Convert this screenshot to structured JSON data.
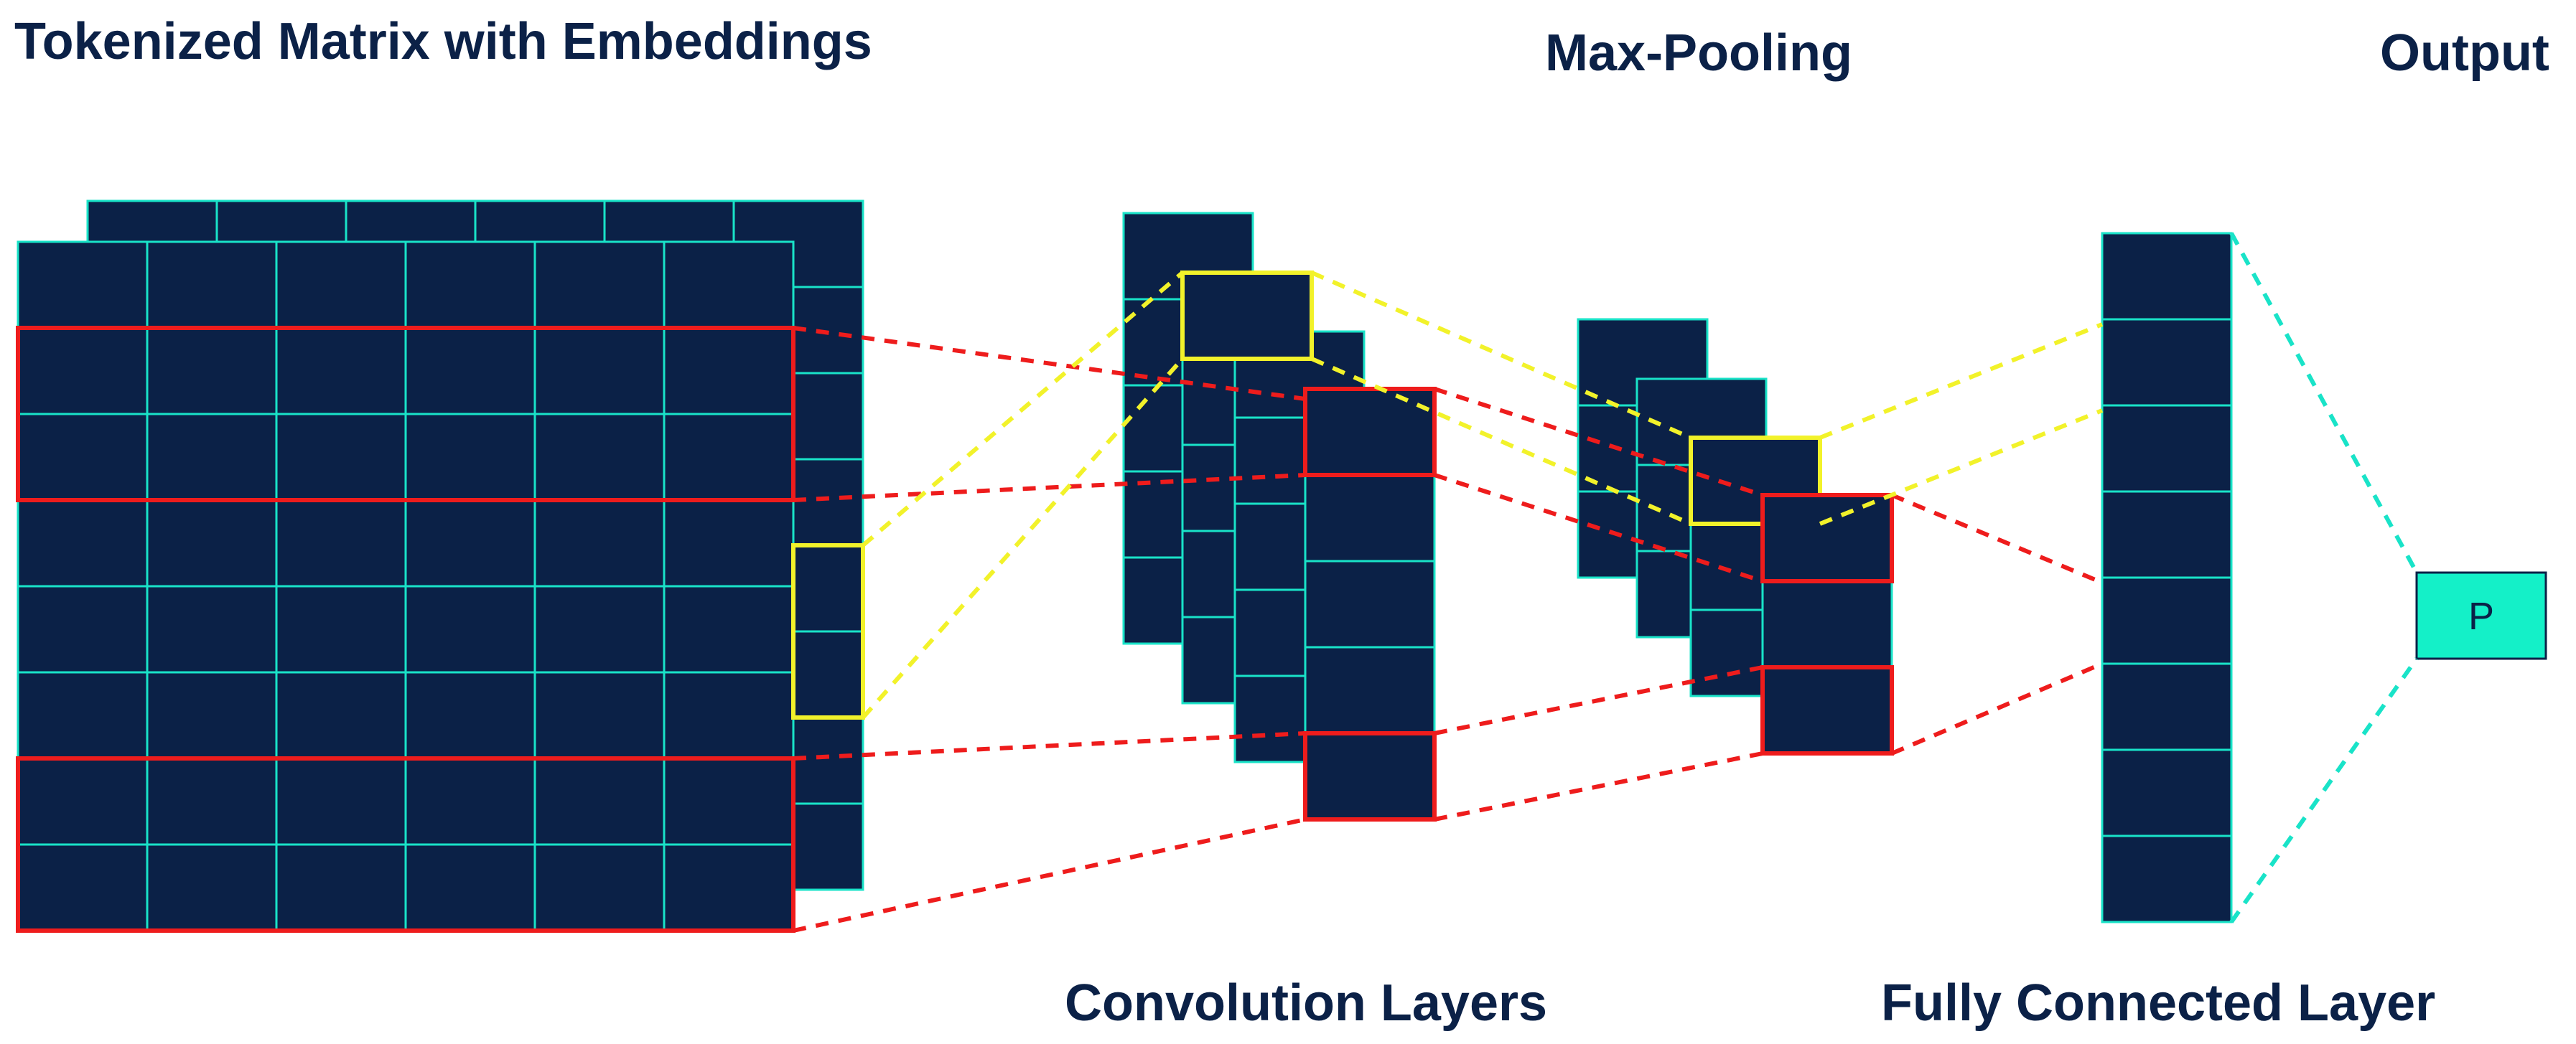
{
  "labels": {
    "tokenized": "Tokenized Matrix with Embeddings",
    "maxpool": "Max-Pooling",
    "output": "Output",
    "convolution": "Convolution Layers",
    "fully_connected": "Fully Connected Layer"
  },
  "output_node": {
    "text": "P"
  },
  "colors": {
    "cell_fill": "#0b2147",
    "grid_line": "#19e3c8",
    "highlight_red": "#ee1c1c",
    "highlight_yellow": "#f2f22a",
    "connector_cyan": "#19e3c8",
    "output_fill": "#14f0c8",
    "title_text": "#0b2147"
  },
  "structure": {
    "input_matrix": {
      "rows": 8,
      "cols": 6
    },
    "conv_layers": 4,
    "conv_cells_per_layer": 5,
    "pool_layers": 4,
    "fc_units": 8
  }
}
